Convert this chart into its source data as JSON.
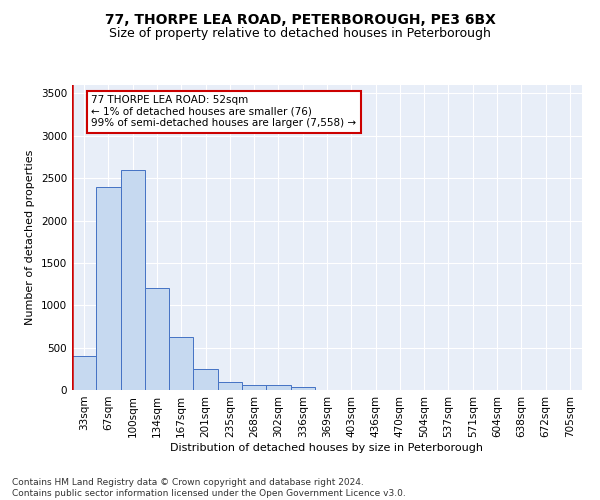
{
  "title": "77, THORPE LEA ROAD, PETERBOROUGH, PE3 6BX",
  "subtitle": "Size of property relative to detached houses in Peterborough",
  "xlabel": "Distribution of detached houses by size in Peterborough",
  "ylabel": "Number of detached properties",
  "categories": [
    "33sqm",
    "67sqm",
    "100sqm",
    "134sqm",
    "167sqm",
    "201sqm",
    "235sqm",
    "268sqm",
    "302sqm",
    "336sqm",
    "369sqm",
    "403sqm",
    "436sqm",
    "470sqm",
    "504sqm",
    "537sqm",
    "571sqm",
    "604sqm",
    "638sqm",
    "672sqm",
    "705sqm"
  ],
  "values": [
    400,
    2400,
    2600,
    1200,
    620,
    250,
    100,
    60,
    55,
    40,
    0,
    0,
    0,
    0,
    0,
    0,
    0,
    0,
    0,
    0,
    0
  ],
  "bar_color": "#c6d9f0",
  "bar_edge_color": "#4472c4",
  "marker_color": "#cc0000",
  "annotation_text": "77 THORPE LEA ROAD: 52sqm\n← 1% of detached houses are smaller (76)\n99% of semi-detached houses are larger (7,558) →",
  "annotation_box_color": "#ffffff",
  "annotation_box_edge": "#cc0000",
  "ylim": [
    0,
    3600
  ],
  "yticks": [
    0,
    500,
    1000,
    1500,
    2000,
    2500,
    3000,
    3500
  ],
  "plot_background": "#e8eef8",
  "footer": "Contains HM Land Registry data © Crown copyright and database right 2024.\nContains public sector information licensed under the Open Government Licence v3.0.",
  "title_fontsize": 10,
  "subtitle_fontsize": 9,
  "xlabel_fontsize": 8,
  "ylabel_fontsize": 8,
  "grid_color": "#ffffff",
  "tick_fontsize": 7.5
}
